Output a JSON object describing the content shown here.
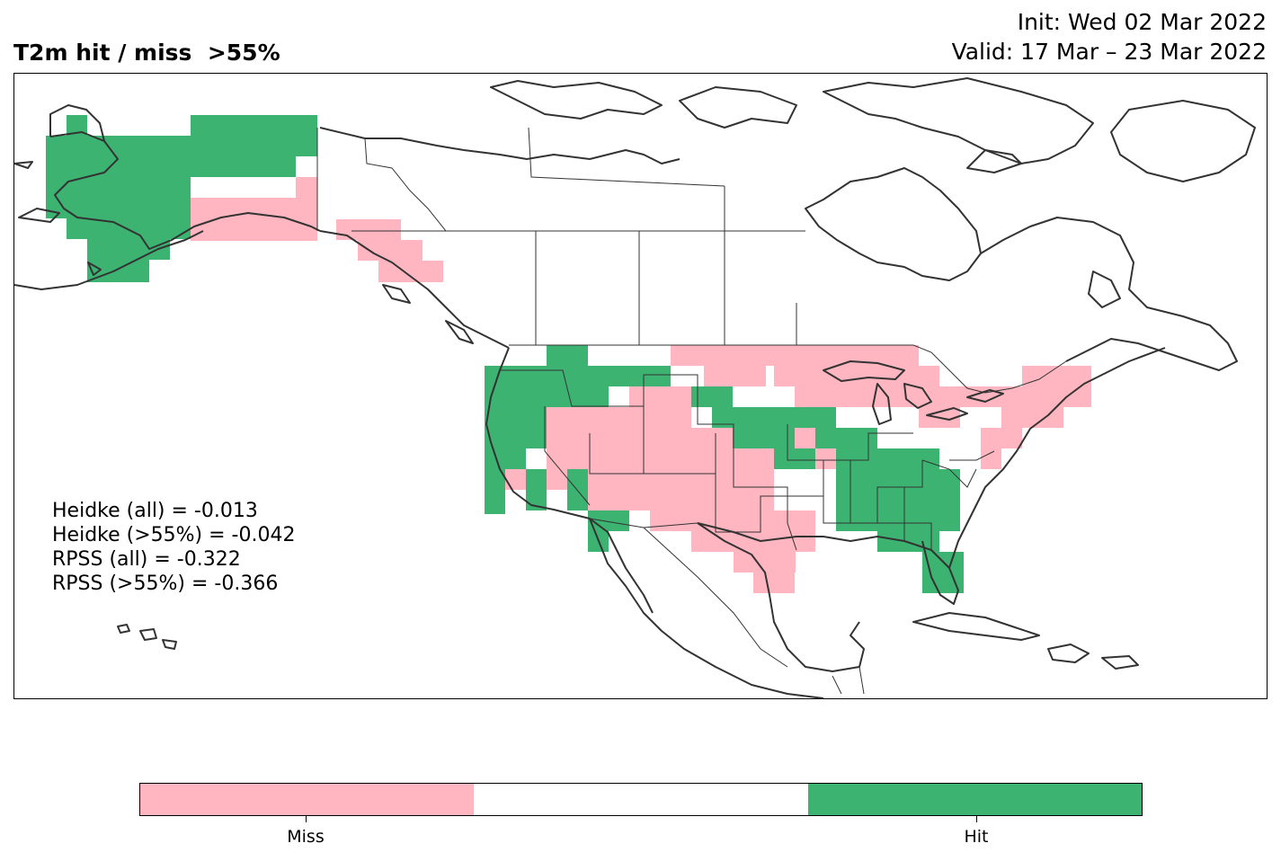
{
  "title": "T2m hit / miss  >55%",
  "init": "Init: Wed 02 Mar 2022",
  "valid": "Valid: 17 Mar – 23 Mar 2022",
  "stats": {
    "heidke_all": "Heidke (all) = -0.013",
    "heidke_55": "Heidke (>55%) = -0.042",
    "rpss_all": "RPSS (all) = -0.322",
    "rpss_55": "RPSS (>55%) = -0.366"
  },
  "colorbar": {
    "colors": [
      "#ffb6c1",
      "#ffffff",
      "#3cb371"
    ],
    "labels": [
      "Miss",
      "Hit"
    ]
  },
  "colors": {
    "hit": "#3cb371",
    "miss": "#ffb6c1",
    "coast": "#333333"
  },
  "regions_shown": "Alaska, Canada, contiguous United States, Mexico, Caribbean",
  "grid_categories": [
    "miss",
    "none",
    "hit"
  ]
}
